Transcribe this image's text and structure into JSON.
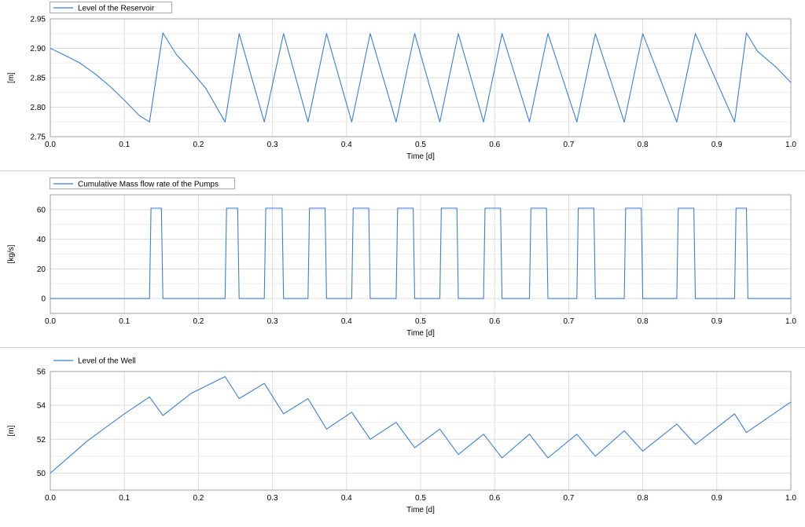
{
  "colors": {
    "series": "#3a7fd5",
    "grid": "#dcdcdc",
    "axis": "#555555",
    "divider": "#cccccc"
  },
  "chart_data": [
    {
      "type": "line",
      "legend": "Level of the Reservoir",
      "legend_position": "top-left",
      "legend_selected": true,
      "xlabel": "Time [d]",
      "ylabel": "[m]",
      "xlim": [
        0,
        1
      ],
      "ylim": [
        2.75,
        2.95
      ],
      "xticks": [
        0,
        0.1,
        0.2,
        0.3,
        0.4,
        0.5,
        0.6,
        0.7,
        0.8,
        0.9,
        1.0
      ],
      "xtick_labels": [
        "0.0",
        "0.1",
        "0.2",
        "0.3",
        "0.4",
        "0.5",
        "0.6",
        "0.7",
        "0.8",
        "0.9",
        "1.0"
      ],
      "yticks": [
        2.75,
        2.8,
        2.85,
        2.9,
        2.95
      ],
      "ytick_labels": [
        "2.75",
        "2.80",
        "2.85",
        "2.90",
        "2.95"
      ],
      "grid": true,
      "series": [
        {
          "name": "Level of the Reservoir",
          "x": [
            0.0,
            0.02,
            0.04,
            0.06,
            0.08,
            0.1,
            0.12,
            0.134,
            0.152,
            0.17,
            0.19,
            0.21,
            0.236,
            0.255,
            0.289,
            0.315,
            0.348,
            0.373,
            0.407,
            0.432,
            0.467,
            0.492,
            0.526,
            0.551,
            0.585,
            0.61,
            0.647,
            0.672,
            0.711,
            0.736,
            0.775,
            0.8,
            0.846,
            0.871,
            0.924,
            0.94,
            0.955,
            0.98,
            1.0
          ],
          "y": [
            2.9,
            2.888,
            2.875,
            2.857,
            2.836,
            2.812,
            2.786,
            2.775,
            2.926,
            2.89,
            2.862,
            2.832,
            2.775,
            2.925,
            2.775,
            2.925,
            2.775,
            2.925,
            2.775,
            2.925,
            2.775,
            2.925,
            2.775,
            2.925,
            2.775,
            2.925,
            2.775,
            2.925,
            2.775,
            2.925,
            2.775,
            2.925,
            2.775,
            2.925,
            2.775,
            2.926,
            2.895,
            2.868,
            2.842
          ]
        }
      ]
    },
    {
      "type": "line",
      "legend": "Cumulative Mass flow rate of the Pumps",
      "legend_position": "top-left",
      "legend_selected": true,
      "xlabel": "Time [d]",
      "ylabel": "[kg/s]",
      "xlim": [
        0,
        1
      ],
      "ylim": [
        -10,
        70
      ],
      "xticks": [
        0,
        0.1,
        0.2,
        0.3,
        0.4,
        0.5,
        0.6,
        0.7,
        0.8,
        0.9,
        1.0
      ],
      "xtick_labels": [
        "0.0",
        "0.1",
        "0.2",
        "0.3",
        "0.4",
        "0.5",
        "0.6",
        "0.7",
        "0.8",
        "0.9",
        "1.0"
      ],
      "yticks": [
        0,
        20,
        40,
        60
      ],
      "ytick_labels": [
        "0",
        "20",
        "40",
        "60"
      ],
      "grid": true,
      "series": [
        {
          "name": "Cumulative Mass flow rate of the Pumps",
          "x": [
            0.0,
            0.134,
            0.136,
            0.15,
            0.152,
            0.236,
            0.238,
            0.253,
            0.255,
            0.289,
            0.291,
            0.313,
            0.315,
            0.348,
            0.35,
            0.371,
            0.373,
            0.407,
            0.409,
            0.43,
            0.432,
            0.467,
            0.469,
            0.49,
            0.492,
            0.526,
            0.528,
            0.549,
            0.551,
            0.585,
            0.587,
            0.608,
            0.61,
            0.647,
            0.649,
            0.67,
            0.672,
            0.711,
            0.713,
            0.734,
            0.736,
            0.775,
            0.777,
            0.798,
            0.8,
            0.846,
            0.848,
            0.869,
            0.871,
            0.924,
            0.926,
            0.94,
            0.942,
            1.0
          ],
          "y": [
            0,
            0,
            61,
            61,
            0,
            0,
            61,
            61,
            0,
            0,
            61,
            61,
            0,
            0,
            61,
            61,
            0,
            0,
            61,
            61,
            0,
            0,
            61,
            61,
            0,
            0,
            61,
            61,
            0,
            0,
            61,
            61,
            0,
            0,
            61,
            61,
            0,
            0,
            61,
            61,
            0,
            0,
            61,
            61,
            0,
            0,
            61,
            61,
            0,
            0,
            61,
            61,
            0,
            0
          ]
        }
      ]
    },
    {
      "type": "line",
      "legend": "Level of the Well",
      "legend_position": "top-left",
      "legend_selected": false,
      "xlabel": "Time [d]",
      "ylabel": "[m]",
      "xlim": [
        0,
        1
      ],
      "ylim": [
        49,
        56
      ],
      "xticks": [
        0,
        0.1,
        0.2,
        0.3,
        0.4,
        0.5,
        0.6,
        0.7,
        0.8,
        0.9,
        1.0
      ],
      "xtick_labels": [
        "0.0",
        "0.1",
        "0.2",
        "0.3",
        "0.4",
        "0.5",
        "0.6",
        "0.7",
        "0.8",
        "0.9",
        "1.0"
      ],
      "yticks": [
        50,
        52,
        54,
        56
      ],
      "ytick_labels": [
        "50",
        "52",
        "54",
        "56"
      ],
      "grid": true,
      "series": [
        {
          "name": "Level of the Well",
          "x": [
            0.0,
            0.05,
            0.1,
            0.134,
            0.152,
            0.19,
            0.236,
            0.255,
            0.289,
            0.315,
            0.348,
            0.373,
            0.407,
            0.432,
            0.467,
            0.492,
            0.526,
            0.551,
            0.585,
            0.61,
            0.647,
            0.672,
            0.711,
            0.736,
            0.775,
            0.8,
            0.846,
            0.871,
            0.924,
            0.94,
            1.0
          ],
          "y": [
            50.0,
            51.9,
            53.5,
            54.5,
            53.4,
            54.7,
            55.7,
            54.4,
            55.3,
            53.5,
            54.4,
            52.6,
            53.6,
            52.0,
            53.0,
            51.5,
            52.6,
            51.1,
            52.3,
            50.9,
            52.3,
            50.9,
            52.3,
            51.0,
            52.5,
            51.3,
            52.9,
            51.7,
            53.5,
            52.4,
            54.2
          ]
        }
      ]
    }
  ]
}
